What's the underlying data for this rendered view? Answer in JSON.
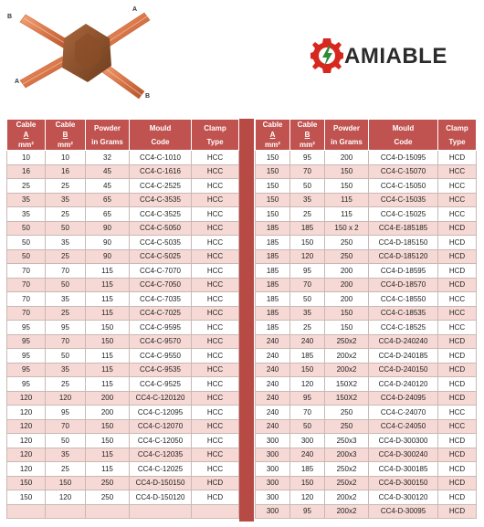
{
  "graphic": {
    "corner_labels": [
      "A",
      "B",
      "A",
      "B"
    ]
  },
  "logo": {
    "brand": "AMIABLE"
  },
  "left_table": {
    "headers": [
      {
        "line1": "Cable",
        "line2": "A",
        "line3": "mm²"
      },
      {
        "line1": "Cable",
        "line2": "B",
        "line3": "mm²"
      },
      {
        "line1": "Powder",
        "line2": "in Grams"
      },
      {
        "line1": "Mould",
        "line2": "Code"
      },
      {
        "line1": "Clamp",
        "line2": "Type"
      }
    ],
    "rows": [
      [
        "10",
        "10",
        "32",
        "CC4-C-1010",
        "HCC"
      ],
      [
        "16",
        "16",
        "45",
        "CC4-C-1616",
        "HCC"
      ],
      [
        "25",
        "25",
        "45",
        "CC4-C-2525",
        "HCC"
      ],
      [
        "35",
        "35",
        "65",
        "CC4-C-3535",
        "HCC"
      ],
      [
        "35",
        "25",
        "65",
        "CC4-C-3525",
        "HCC"
      ],
      [
        "50",
        "50",
        "90",
        "CC4-C-5050",
        "HCC"
      ],
      [
        "50",
        "35",
        "90",
        "CC4-C-5035",
        "HCC"
      ],
      [
        "50",
        "25",
        "90",
        "CC4-C-5025",
        "HCC"
      ],
      [
        "70",
        "70",
        "115",
        "CC4-C-7070",
        "HCC"
      ],
      [
        "70",
        "50",
        "115",
        "CC4-C-7050",
        "HCC"
      ],
      [
        "70",
        "35",
        "115",
        "CC4-C-7035",
        "HCC"
      ],
      [
        "70",
        "25",
        "115",
        "CC4-C-7025",
        "HCC"
      ],
      [
        "95",
        "95",
        "150",
        "CC4-C-9595",
        "HCC"
      ],
      [
        "95",
        "70",
        "150",
        "CC4-C-9570",
        "HCC"
      ],
      [
        "95",
        "50",
        "115",
        "CC4-C-9550",
        "HCC"
      ],
      [
        "95",
        "35",
        "115",
        "CC4-C-9535",
        "HCC"
      ],
      [
        "95",
        "25",
        "115",
        "CC4-C-9525",
        "HCC"
      ],
      [
        "120",
        "120",
        "200",
        "CC4-C-120120",
        "HCC"
      ],
      [
        "120",
        "95",
        "200",
        "CC4-C-12095",
        "HCC"
      ],
      [
        "120",
        "70",
        "150",
        "CC4-C-12070",
        "HCC"
      ],
      [
        "120",
        "50",
        "150",
        "CC4-C-12050",
        "HCC"
      ],
      [
        "120",
        "35",
        "115",
        "CC4-C-12035",
        "HCC"
      ],
      [
        "120",
        "25",
        "115",
        "CC4-C-12025",
        "HCC"
      ],
      [
        "150",
        "150",
        "250",
        "CC4-D-150150",
        "HCD"
      ],
      [
        "150",
        "120",
        "250",
        "CC4-D-150120",
        "HCD"
      ],
      [
        "",
        "",
        "",
        "",
        ""
      ]
    ]
  },
  "right_table": {
    "headers": [
      {
        "line1": "Cable",
        "line2": "A",
        "line3": "mm²"
      },
      {
        "line1": "Cable",
        "line2": "B",
        "line3": "mm²"
      },
      {
        "line1": "Powder",
        "line2": "in Grams"
      },
      {
        "line1": "Mould",
        "line2": "Code"
      },
      {
        "line1": "Clamp",
        "line2": "Type"
      }
    ],
    "rows": [
      [
        "150",
        "95",
        "200",
        "CC4-D-15095",
        "HCD"
      ],
      [
        "150",
        "70",
        "150",
        "CC4-C-15070",
        "HCC"
      ],
      [
        "150",
        "50",
        "150",
        "CC4-C-15050",
        "HCC"
      ],
      [
        "150",
        "35",
        "115",
        "CC4-C-15035",
        "HCC"
      ],
      [
        "150",
        "25",
        "115",
        "CC4-C-15025",
        "HCC"
      ],
      [
        "185",
        "185",
        "150 x 2",
        "CC4-E-185185",
        "HCD"
      ],
      [
        "185",
        "150",
        "250",
        "CC4-D-185150",
        "HCD"
      ],
      [
        "185",
        "120",
        "250",
        "CC4-D-185120",
        "HCD"
      ],
      [
        "185",
        "95",
        "200",
        "CC4-D-18595",
        "HCD"
      ],
      [
        "185",
        "70",
        "200",
        "CC4-D-18570",
        "HCD"
      ],
      [
        "185",
        "50",
        "200",
        "CC4-C-18550",
        "HCC"
      ],
      [
        "185",
        "35",
        "150",
        "CC4-C-18535",
        "HCC"
      ],
      [
        "185",
        "25",
        "150",
        "CC4-C-18525",
        "HCC"
      ],
      [
        "240",
        "240",
        "250x2",
        "CC4-D-240240",
        "HCD"
      ],
      [
        "240",
        "185",
        "200x2",
        "CC4-D-240185",
        "HCD"
      ],
      [
        "240",
        "150",
        "200x2",
        "CC4-D-240150",
        "HCD"
      ],
      [
        "240",
        "120",
        "150X2",
        "CC4-D-240120",
        "HCD"
      ],
      [
        "240",
        "95",
        "150X2",
        "CC4-D-24095",
        "HCD"
      ],
      [
        "240",
        "70",
        "250",
        "CC4-C-24070",
        "HCC"
      ],
      [
        "240",
        "50",
        "250",
        "CC4-C-24050",
        "HCC"
      ],
      [
        "300",
        "300",
        "250x3",
        "CC4-D-300300",
        "HCD"
      ],
      [
        "300",
        "240",
        "200x3",
        "CC4-D-300240",
        "HCD"
      ],
      [
        "300",
        "185",
        "250x2",
        "CC4-D-300185",
        "HCD"
      ],
      [
        "300",
        "150",
        "250x2",
        "CC4-D-300150",
        "HCD"
      ],
      [
        "300",
        "120",
        "200x2",
        "CC4-D-300120",
        "HCD"
      ],
      [
        "300",
        "95",
        "200x2",
        "CC4-D-30095",
        "HCD"
      ]
    ]
  }
}
